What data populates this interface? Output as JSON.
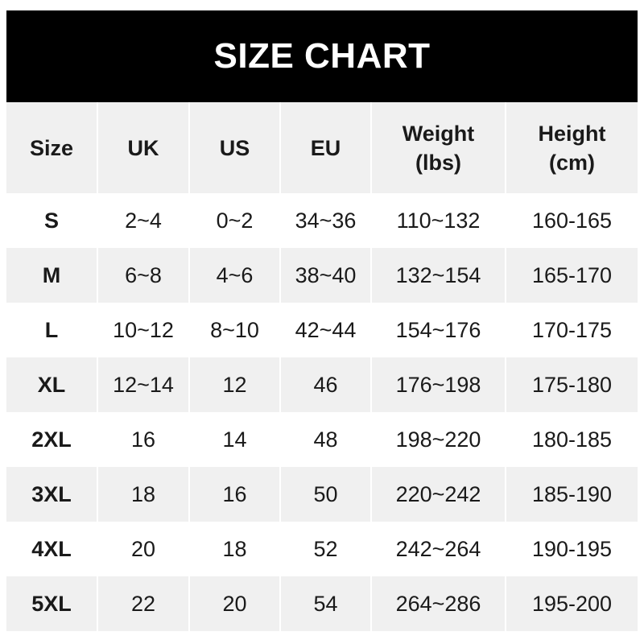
{
  "title": "SIZE CHART",
  "columns": [
    {
      "line1": "Size",
      "line2": ""
    },
    {
      "line1": "UK",
      "line2": ""
    },
    {
      "line1": "US",
      "line2": ""
    },
    {
      "line1": "EU",
      "line2": ""
    },
    {
      "line1": "Weight",
      "line2": "(lbs)"
    },
    {
      "line1": "Height",
      "line2": "(cm)"
    }
  ],
  "rows": [
    [
      "S",
      "2~4",
      "0~2",
      "34~36",
      "110~132",
      "160-165"
    ],
    [
      "M",
      "6~8",
      "4~6",
      "38~40",
      "132~154",
      "165-170"
    ],
    [
      "L",
      "10~12",
      "8~10",
      "42~44",
      "154~176",
      "170-175"
    ],
    [
      "XL",
      "12~14",
      "12",
      "46",
      "176~198",
      "175-180"
    ],
    [
      "2XL",
      "16",
      "14",
      "48",
      "198~220",
      "180-185"
    ],
    [
      "3XL",
      "18",
      "16",
      "50",
      "220~242",
      "185-190"
    ],
    [
      "4XL",
      "20",
      "18",
      "52",
      "242~264",
      "190-195"
    ],
    [
      "5XL",
      "22",
      "20",
      "54",
      "264~286",
      "195-200"
    ]
  ],
  "colors": {
    "header_bg": "#000000",
    "stripe_bg": "#f0f0f0",
    "text": "#1a1a1a"
  }
}
